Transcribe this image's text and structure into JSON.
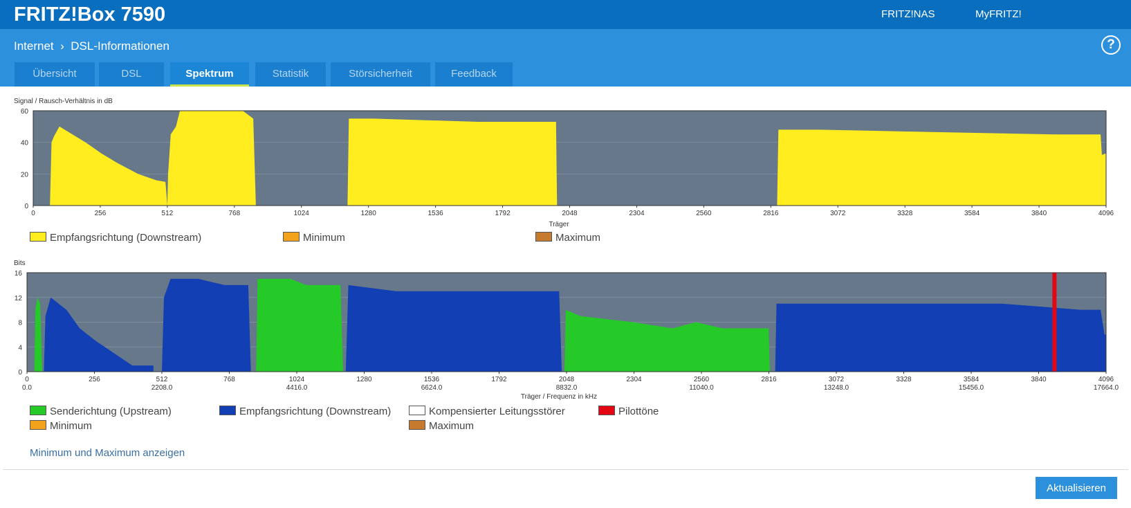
{
  "header": {
    "brand": "FRITZ!Box 7590",
    "links": [
      "FRITZ!NAS",
      "MyFRITZ!"
    ]
  },
  "breadcrumb": {
    "parent": "Internet",
    "current": "DSL-Informationen"
  },
  "tabs": [
    "Übersicht",
    "DSL",
    "Spektrum",
    "Statistik",
    "Störsicherheit",
    "Feedback"
  ],
  "active_tab": "Spektrum",
  "snr_chart": {
    "ylabel": "Signal / Rausch-Verhältnis in dB",
    "xlabel": "Träger",
    "yticks": [
      "60",
      "40",
      "20",
      "0"
    ],
    "xticks": [
      "0",
      "256",
      "512",
      "768",
      "1024",
      "1280",
      "1536",
      "1792",
      "2048",
      "2304",
      "2560",
      "2816",
      "3072",
      "3328",
      "3584",
      "3840",
      "4096"
    ],
    "legend": [
      "Empfangsrichtung (Downstream)",
      "Minimum",
      "Maximum"
    ]
  },
  "bits_chart": {
    "ylabel": "Bits",
    "xlabel": "Träger / Frequenz in kHz",
    "yticks": [
      "16",
      "12",
      "8",
      "4",
      "0"
    ],
    "xticks": [
      "0",
      "256",
      "512",
      "768",
      "1024",
      "1280",
      "1536",
      "1792",
      "2048",
      "2304",
      "2560",
      "2816",
      "3072",
      "3328",
      "3584",
      "3840",
      "4096"
    ],
    "freqticks": [
      "0.0",
      "",
      "2208.0",
      "",
      "4416.0",
      "",
      "6624.0",
      "",
      "8832.0",
      "",
      "11040.0",
      "",
      "13248.0",
      "",
      "15456.0",
      "",
      "17664.0"
    ],
    "legend": [
      "Senderichtung (Upstream)",
      "Empfangsrichtung (Downstream)",
      "Kompensierter Leitungsstörer",
      "Pilottöne",
      "Minimum",
      "Maximum"
    ]
  },
  "chart_data": [
    {
      "type": "area",
      "title": "",
      "xlabel": "Träger",
      "ylabel": "Signal / Rausch-Verhältnis in dB",
      "xlim": [
        0,
        4096
      ],
      "ylim": [
        0,
        60
      ],
      "grid": true,
      "legend_position": "bottom",
      "series": [
        {
          "name": "Empfangsrichtung (Downstream)",
          "color": "#ffed1f",
          "bands": [
            {
              "from": 64,
              "to": 512,
              "points": [
                [
                  64,
                  0
                ],
                [
                  70,
                  40
                ],
                [
                  80,
                  44
                ],
                [
                  100,
                  50
                ],
                [
                  150,
                  45
                ],
                [
                  200,
                  40
                ],
                [
                  260,
                  33
                ],
                [
                  320,
                  27
                ],
                [
                  400,
                  20
                ],
                [
                  470,
                  16
                ],
                [
                  505,
                  15
                ],
                [
                  512,
                  0
                ]
              ]
            },
            {
              "from": 512,
              "to": 850,
              "points": [
                [
                  512,
                  0
                ],
                [
                  515,
                  20
                ],
                [
                  525,
                  45
                ],
                [
                  545,
                  50
                ],
                [
                  560,
                  60
                ],
                [
                  600,
                  60
                ],
                [
                  700,
                  60
                ],
                [
                  800,
                  60
                ],
                [
                  840,
                  55
                ],
                [
                  850,
                  0
                ]
              ]
            },
            {
              "from": 1200,
              "to": 2000,
              "points": [
                [
                  1200,
                  0
                ],
                [
                  1205,
                  55
                ],
                [
                  1300,
                  55
                ],
                [
                  1500,
                  54
                ],
                [
                  1700,
                  53
                ],
                [
                  1996,
                  53
                ],
                [
                  2000,
                  0
                ]
              ]
            },
            {
              "from": 2840,
              "to": 4096,
              "points": [
                [
                  2840,
                  0
                ],
                [
                  2845,
                  48
                ],
                [
                  3000,
                  48
                ],
                [
                  3300,
                  47
                ],
                [
                  3600,
                  46
                ],
                [
                  3900,
                  45
                ],
                [
                  4075,
                  45
                ],
                [
                  4080,
                  32
                ],
                [
                  4096,
                  33
                ]
              ]
            }
          ]
        },
        {
          "name": "Minimum",
          "color": "#f2a31b",
          "values": []
        },
        {
          "name": "Maximum",
          "color": "#c67a2d",
          "values": []
        }
      ]
    },
    {
      "type": "area",
      "title": "",
      "xlabel": "Träger / Frequenz in kHz",
      "ylabel": "Bits",
      "xlim": [
        0,
        4096
      ],
      "ylim": [
        0,
        16
      ],
      "grid": true,
      "legend_position": "bottom",
      "series": [
        {
          "name": "Senderichtung (Upstream)",
          "color": "#25c928",
          "bands": [
            {
              "from": 28,
              "to": 58,
              "points": [
                [
                  28,
                  0
                ],
                [
                  32,
                  10
                ],
                [
                  40,
                  12
                ],
                [
                  50,
                  11
                ],
                [
                  58,
                  0
                ]
              ]
            },
            {
              "from": 870,
              "to": 1200,
              "points": [
                [
                  870,
                  0
                ],
                [
                  875,
                  15
                ],
                [
                  1000,
                  15
                ],
                [
                  1060,
                  14
                ],
                [
                  1190,
                  14
                ],
                [
                  1200,
                  0
                ]
              ]
            },
            {
              "from": 2040,
              "to": 2820,
              "points": [
                [
                  2040,
                  0
                ],
                [
                  2045,
                  10
                ],
                [
                  2100,
                  9
                ],
                [
                  2300,
                  8
                ],
                [
                  2450,
                  7
                ],
                [
                  2540,
                  8
                ],
                [
                  2640,
                  7
                ],
                [
                  2815,
                  7
                ],
                [
                  2820,
                  0
                ]
              ]
            }
          ]
        },
        {
          "name": "Empfangsrichtung (Downstream)",
          "color": "#1240b4",
          "bands": [
            {
              "from": 64,
              "to": 480,
              "points": [
                [
                  64,
                  0
                ],
                [
                  70,
                  9
                ],
                [
                  90,
                  12
                ],
                [
                  150,
                  10
                ],
                [
                  200,
                  7
                ],
                [
                  260,
                  5
                ],
                [
                  330,
                  3
                ],
                [
                  400,
                  1
                ],
                [
                  480,
                  1
                ],
                [
                  480,
                  0
                ]
              ]
            },
            {
              "from": 512,
              "to": 850,
              "points": [
                [
                  512,
                  0
                ],
                [
                  520,
                  12
                ],
                [
                  545,
                  15
                ],
                [
                  650,
                  15
                ],
                [
                  750,
                  14
                ],
                [
                  840,
                  14
                ],
                [
                  850,
                  0
                ]
              ]
            },
            {
              "from": 1210,
              "to": 2030,
              "points": [
                [
                  1210,
                  0
                ],
                [
                  1220,
                  14
                ],
                [
                  1400,
                  13
                ],
                [
                  1700,
                  13
                ],
                [
                  2020,
                  13
                ],
                [
                  2030,
                  0
                ]
              ]
            },
            {
              "from": 2840,
              "to": 4096,
              "points": [
                [
                  2840,
                  0
                ],
                [
                  2845,
                  11
                ],
                [
                  3200,
                  11
                ],
                [
                  3700,
                  11
                ],
                [
                  4000,
                  10
                ],
                [
                  4075,
                  10
                ],
                [
                  4090,
                  6
                ],
                [
                  4096,
                  6
                ]
              ]
            }
          ]
        },
        {
          "name": "Kompensierter Leitungsstörer",
          "color": "#ffffff",
          "values": []
        },
        {
          "name": "Pilottöne",
          "color": "#e30613",
          "x": [
            3900
          ]
        },
        {
          "name": "Minimum",
          "color": "#f2a31b",
          "values": []
        },
        {
          "name": "Maximum",
          "color": "#c67a2d",
          "values": []
        }
      ]
    }
  ],
  "show_minmax_link": "Minimum und Maximum anzeigen",
  "refresh_button": "Aktualisieren"
}
